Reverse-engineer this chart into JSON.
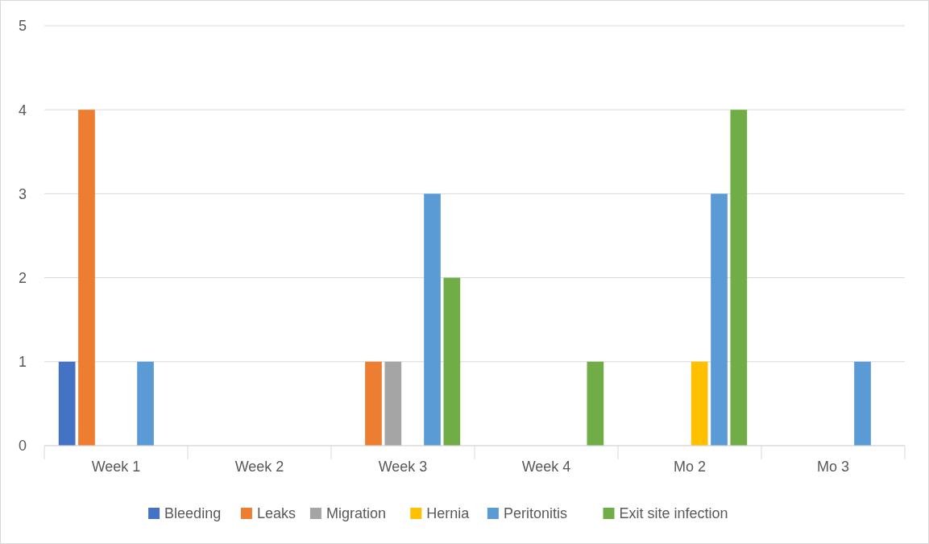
{
  "chart_data": {
    "type": "bar",
    "categories": [
      "Week 1",
      "Week 2",
      "Week 3",
      "Week 4",
      "Mo 2",
      "Mo 3"
    ],
    "series": [
      {
        "name": "Bleeding",
        "color": "#4472c4",
        "values": [
          1,
          0,
          0,
          0,
          0,
          0
        ]
      },
      {
        "name": "Leaks",
        "color": "#ed7d31",
        "values": [
          4,
          0,
          1,
          0,
          0,
          0
        ]
      },
      {
        "name": "Migration",
        "color": "#a5a5a5",
        "values": [
          0,
          0,
          1,
          0,
          0,
          0
        ]
      },
      {
        "name": "Hernia",
        "color": "#ffc000",
        "values": [
          0,
          0,
          0,
          0,
          1,
          0
        ]
      },
      {
        "name": "Peritonitis",
        "color": "#5b9bd5",
        "values": [
          1,
          0,
          3,
          0,
          3,
          1
        ]
      },
      {
        "name": "Exit site infection",
        "color": "#70ad47",
        "values": [
          0,
          0,
          2,
          1,
          4,
          0
        ]
      }
    ],
    "ylim": [
      0,
      5
    ],
    "yticks": [
      0,
      1,
      2,
      3,
      4,
      5
    ],
    "grid": "y",
    "legend": "bottom"
  }
}
